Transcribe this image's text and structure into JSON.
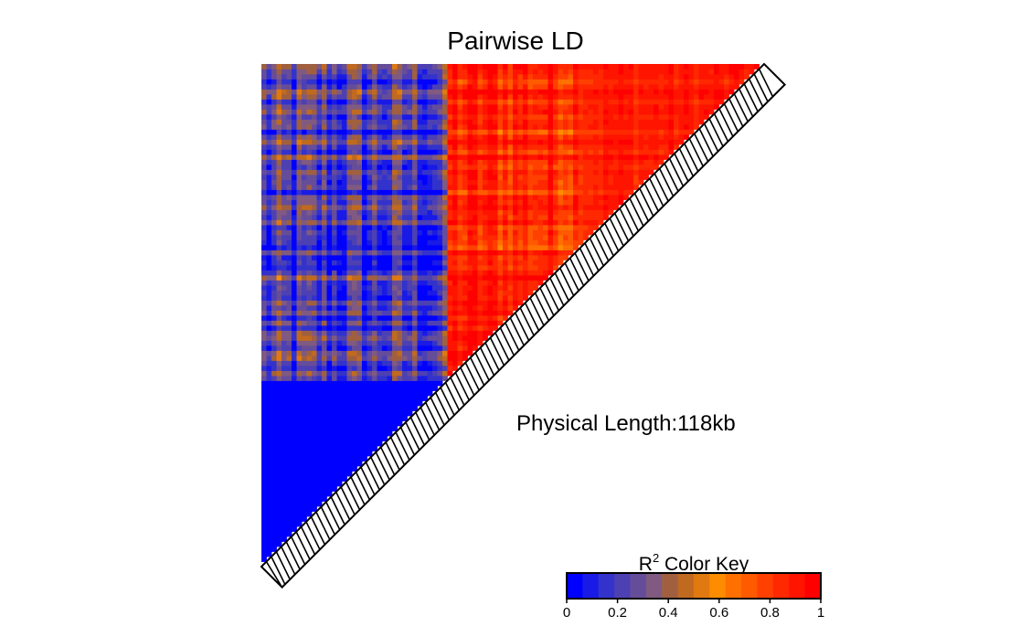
{
  "chart_data": {
    "type": "heatmap",
    "title": "Pairwise LD",
    "annotation": "Physical Length:118kb",
    "color_key": {
      "title_prefix": "R",
      "title_superscript": "2",
      "title_suffix": " Color Key",
      "range": [
        0,
        1
      ],
      "ticks": [
        "0",
        "0.2",
        "0.4",
        "0.6",
        "0.8",
        "1"
      ],
      "colors": [
        "#0000ff",
        "#1a1ae6",
        "#3333cc",
        "#4d40b3",
        "#664d99",
        "#805a80",
        "#a06040",
        "#c06a20",
        "#e07a10",
        "#ff8c00",
        "#ff7000",
        "#ff5a00",
        "#ff4000",
        "#ff2800",
        "#ff1400",
        "#ff0000"
      ]
    },
    "snp_count": 100,
    "block_boundaries": [
      0,
      37,
      63,
      100
    ],
    "block_r2": [
      [
        0.02,
        0.2,
        0.2
      ],
      [
        0.2,
        0.9,
        0.85
      ],
      [
        0.2,
        0.85,
        0.88
      ]
    ],
    "block_r2_variation": [
      [
        0.03,
        0.35,
        0.35
      ],
      [
        0.35,
        0.18,
        0.25
      ],
      [
        0.35,
        0.25,
        0.12
      ]
    ]
  }
}
